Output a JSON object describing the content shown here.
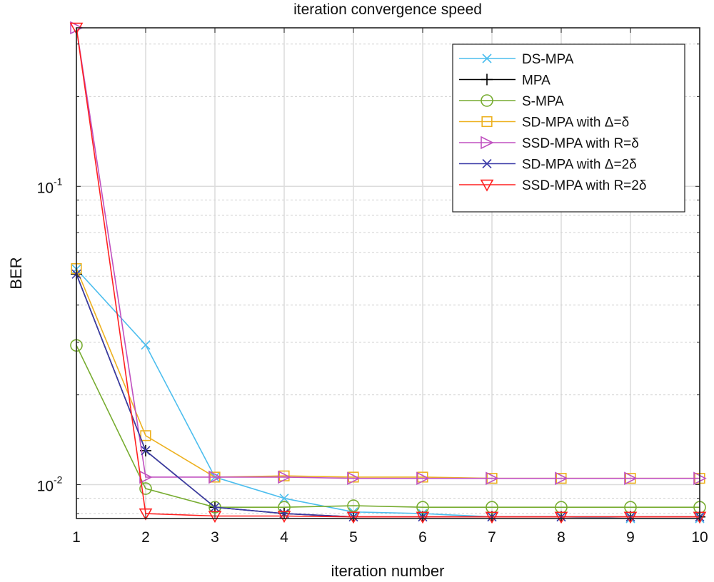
{
  "chart_data": {
    "type": "line",
    "title": "iteration convergence speed",
    "xlabel": "iteration number",
    "ylabel": "BER",
    "x": [
      1,
      2,
      3,
      4,
      5,
      6,
      7,
      8,
      9,
      10
    ],
    "xlim": [
      1,
      10
    ],
    "ylim": [
      0.0077,
      0.34
    ],
    "yscale": "log",
    "grid": true,
    "legend_position": "top-right",
    "x_tick_labels": [
      "1",
      "2",
      "3",
      "4",
      "5",
      "6",
      "7",
      "8",
      "9",
      "10"
    ],
    "y_tick_labels": [
      {
        "base": "10",
        "exp": "-2",
        "value": 0.01
      },
      {
        "base": "10",
        "exp": "-1",
        "value": 0.1
      }
    ],
    "series": [
      {
        "name": "DS-MPA",
        "color": "#4dbeee",
        "marker": "x",
        "values": [
          0.0528,
          0.0294,
          0.0106,
          0.009,
          0.0081,
          0.008,
          0.0078,
          0.0078,
          0.0077,
          0.0077
        ]
      },
      {
        "name": "MPA",
        "color": "#000000",
        "marker": "plus",
        "values": [
          0.0508,
          0.013,
          0.0084,
          0.008,
          0.0078,
          0.0078,
          0.0078,
          0.0078,
          0.0078,
          0.0078
        ]
      },
      {
        "name": "S-MPA",
        "color": "#77ac30",
        "marker": "circle",
        "values": [
          0.0293,
          0.0097,
          0.0084,
          0.0084,
          0.0085,
          0.0084,
          0.0084,
          0.0084,
          0.0084,
          0.0084
        ]
      },
      {
        "name": "SD-MPA with Δ=δ",
        "color": "#edb120",
        "marker": "square",
        "values": [
          0.053,
          0.0146,
          0.0106,
          0.0107,
          0.0106,
          0.0106,
          0.0105,
          0.0105,
          0.0105,
          0.0105
        ]
      },
      {
        "name": "SSD-MPA with R=δ",
        "color": "#c050c0",
        "marker": "triangle-right",
        "values": [
          0.34,
          0.0106,
          0.0106,
          0.0106,
          0.0105,
          0.0105,
          0.0105,
          0.0105,
          0.0105,
          0.0105
        ]
      },
      {
        "name": "SD-MPA with Δ=2δ",
        "color": "#3c3ca8",
        "marker": "x",
        "values": [
          0.0508,
          0.013,
          0.0084,
          0.008,
          0.0078,
          0.0078,
          0.0078,
          0.0078,
          0.0078,
          0.0078
        ]
      },
      {
        "name": "SSD-MPA with R=2δ",
        "color": "#ff2020",
        "marker": "triangle-down",
        "values": [
          0.34,
          0.008,
          0.00785,
          0.00785,
          0.0078,
          0.0078,
          0.0078,
          0.0078,
          0.0078,
          0.0078
        ]
      }
    ]
  }
}
